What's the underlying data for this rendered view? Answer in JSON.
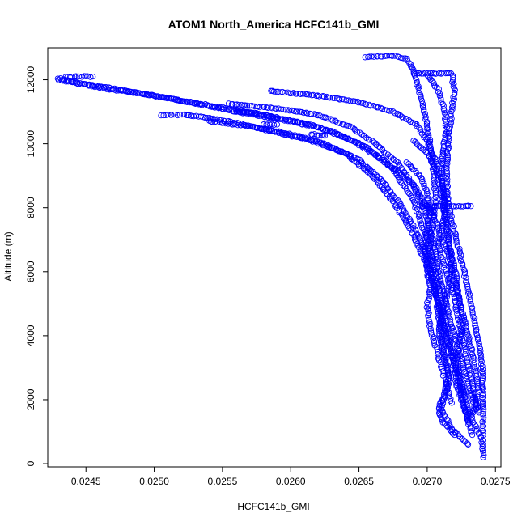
{
  "chart_data": {
    "type": "scatter",
    "title": "ATOM1 North_America HCFC141b_GMI",
    "xlabel": "HCFC141b_GMI",
    "ylabel": "Altitude (m)",
    "xlim": [
      0.02422,
      0.02754
    ],
    "ylim": [
      -100,
      13000
    ],
    "xticks": [
      0.0245,
      0.025,
      0.0255,
      0.026,
      0.0265,
      0.027,
      0.0275
    ],
    "xtick_labels": [
      "0.0245",
      "0.0250",
      "0.0255",
      "0.0260",
      "0.0265",
      "0.0270",
      "0.0275"
    ],
    "yticks": [
      0,
      2000,
      4000,
      6000,
      8000,
      10000,
      12000
    ],
    "ytick_labels": [
      "0",
      "2000",
      "4000",
      "6000",
      "8000",
      "10000",
      "12000"
    ],
    "grid": false,
    "legend": "none",
    "marker": "open-circle",
    "color": "#0000ff",
    "series": [
      {
        "profiles": [
          [
            [
              0.0243,
              12050
            ],
            [
              0.02445,
              11900
            ],
            [
              0.0248,
              11650
            ],
            [
              0.0252,
              11350
            ],
            [
              0.0256,
              11000
            ],
            [
              0.026,
              10700
            ],
            [
              0.0263,
              10400
            ],
            [
              0.02655,
              9900
            ],
            [
              0.02675,
              9200
            ],
            [
              0.0269,
              8200
            ],
            [
              0.027,
              7000
            ],
            [
              0.02705,
              5800
            ],
            [
              0.02708,
              4700
            ],
            [
              0.02712,
              3600
            ],
            [
              0.02716,
              2600
            ],
            [
              0.0271,
              1700
            ],
            [
              0.02718,
              1100
            ],
            [
              0.0273,
              600
            ]
          ],
          [
            [
              0.0243,
              12000
            ],
            [
              0.0246,
              11750
            ],
            [
              0.025,
              11500
            ],
            [
              0.0254,
              11200
            ],
            [
              0.0258,
              10900
            ],
            [
              0.02615,
              10600
            ],
            [
              0.02645,
              10100
            ],
            [
              0.02668,
              9500
            ],
            [
              0.0269,
              8700
            ],
            [
              0.02705,
              7700
            ],
            [
              0.02715,
              6600
            ],
            [
              0.02722,
              5400
            ],
            [
              0.02728,
              4300
            ],
            [
              0.02734,
              3300
            ],
            [
              0.02738,
              2300
            ],
            [
              0.02732,
              1400
            ],
            [
              0.0274,
              800
            ],
            [
              0.02741,
              200
            ]
          ],
          [
            [
              0.02525,
              10900
            ],
            [
              0.02555,
              10700
            ],
            [
              0.02585,
              10400
            ],
            [
              0.02615,
              10100
            ],
            [
              0.0264,
              9700
            ],
            [
              0.0266,
              9000
            ],
            [
              0.02675,
              8200
            ],
            [
              0.02688,
              7300
            ],
            [
              0.02698,
              6400
            ],
            [
              0.02705,
              5500
            ],
            [
              0.02712,
              4400
            ],
            [
              0.02718,
              3400
            ],
            [
              0.02722,
              2400
            ],
            [
              0.02728,
              1600
            ],
            [
              0.02733,
              900
            ]
          ],
          [
            [
              0.0254,
              10700
            ],
            [
              0.0257,
              10550
            ],
            [
              0.026,
              10300
            ],
            [
              0.02625,
              10000
            ],
            [
              0.0265,
              9500
            ],
            [
              0.02668,
              8800
            ],
            [
              0.02682,
              8000
            ],
            [
              0.02694,
              7100
            ],
            [
              0.02702,
              6100
            ],
            [
              0.02708,
              5000
            ],
            [
              0.02714,
              3900
            ],
            [
              0.02722,
              2900
            ],
            [
              0.02728,
              2100
            ]
          ],
          [
            [
              0.02585,
              11650
            ],
            [
              0.0262,
              11500
            ],
            [
              0.0265,
              11300
            ],
            [
              0.02675,
              11000
            ],
            [
              0.02692,
              10600
            ],
            [
              0.027,
              10100
            ],
            [
              0.02706,
              9500
            ],
            [
              0.0271,
              8900
            ],
            [
              0.02713,
              8300
            ],
            [
              0.02712,
              7600
            ],
            [
              0.02708,
              6900
            ],
            [
              0.02712,
              6200
            ],
            [
              0.02718,
              5500
            ],
            [
              0.02722,
              4700
            ],
            [
              0.02726,
              3900
            ],
            [
              0.0273,
              3100
            ],
            [
              0.02734,
              2300
            ],
            [
              0.02738,
              1600
            ]
          ],
          [
            [
              0.02555,
              11250
            ],
            [
              0.0259,
              11100
            ],
            [
              0.0262,
              10900
            ],
            [
              0.02645,
              10500
            ],
            [
              0.02662,
              10000
            ],
            [
              0.02678,
              9400
            ],
            [
              0.0269,
              8700
            ],
            [
              0.02698,
              7900
            ],
            [
              0.02704,
              7000
            ],
            [
              0.02708,
              6100
            ],
            [
              0.02713,
              5200
            ],
            [
              0.02718,
              4300
            ],
            [
              0.02724,
              3400
            ],
            [
              0.0273,
              2500
            ],
            [
              0.02736,
              1700
            ]
          ],
          [
            [
              0.02655,
              12700
            ],
            [
              0.02675,
              12750
            ],
            [
              0.02685,
              12650
            ],
            [
              0.0269,
              12300
            ],
            [
              0.02693,
              11800
            ],
            [
              0.02697,
              11200
            ],
            [
              0.027,
              10500
            ],
            [
              0.02703,
              9800
            ],
            [
              0.02705,
              9000
            ],
            [
              0.02706,
              8200
            ],
            [
              0.02704,
              7500
            ],
            [
              0.02702,
              6800
            ],
            [
              0.02706,
              6000
            ],
            [
              0.0271,
              5200
            ],
            [
              0.02714,
              4400
            ],
            [
              0.02718,
              3600
            ],
            [
              0.02722,
              2800
            ],
            [
              0.02726,
              2000
            ],
            [
              0.0273,
              1300
            ]
          ],
          [
            [
              0.0269,
              12200
            ],
            [
              0.02705,
              12200
            ],
            [
              0.02718,
              12200
            ],
            [
              0.0272,
              11600
            ],
            [
              0.02718,
              11000
            ],
            [
              0.02716,
              10400
            ],
            [
              0.02715,
              9700
            ],
            [
              0.02714,
              9000
            ],
            [
              0.02715,
              8300
            ],
            [
              0.02718,
              7600
            ],
            [
              0.02722,
              6900
            ],
            [
              0.02726,
              6200
            ],
            [
              0.0273,
              5400
            ],
            [
              0.02734,
              4600
            ],
            [
              0.02738,
              3800
            ],
            [
              0.0274,
              3000
            ],
            [
              0.02741,
              2200
            ],
            [
              0.02741,
              1500
            ],
            [
              0.02741,
              900
            ]
          ],
          [
            [
              0.027,
              12150
            ],
            [
              0.02708,
              11700
            ],
            [
              0.02712,
              11100
            ],
            [
              0.02714,
              10500
            ],
            [
              0.02712,
              9800
            ],
            [
              0.0271,
              9100
            ],
            [
              0.02712,
              8400
            ],
            [
              0.02714,
              7700
            ],
            [
              0.02716,
              7000
            ],
            [
              0.02718,
              6300
            ],
            [
              0.02716,
              5600
            ],
            [
              0.02712,
              4900
            ],
            [
              0.02708,
              4200
            ],
            [
              0.02712,
              3500
            ],
            [
              0.02716,
              2800
            ],
            [
              0.02712,
              2100
            ],
            [
              0.02708,
              1700
            ],
            [
              0.02712,
              1300
            ],
            [
              0.0272,
              900
            ]
          ],
          [
            [
              0.02685,
              9400
            ],
            [
              0.02695,
              9000
            ],
            [
              0.027,
              8500
            ],
            [
              0.02702,
              7900
            ],
            [
              0.027,
              7300
            ],
            [
              0.02698,
              6700
            ],
            [
              0.027,
              6100
            ],
            [
              0.02702,
              5500
            ],
            [
              0.027,
              4900
            ],
            [
              0.02702,
              4300
            ],
            [
              0.02706,
              3700
            ],
            [
              0.0271,
              3100
            ],
            [
              0.02714,
              2500
            ],
            [
              0.02718,
              1900
            ]
          ],
          [
            [
              0.0269,
              10100
            ],
            [
              0.027,
              9700
            ],
            [
              0.02706,
              9200
            ],
            [
              0.0271,
              8600
            ],
            [
              0.02712,
              8000
            ],
            [
              0.02714,
              7400
            ],
            [
              0.02716,
              6800
            ],
            [
              0.0272,
              6200
            ],
            [
              0.02722,
              5600
            ],
            [
              0.02724,
              5000
            ],
            [
              0.02726,
              4400
            ],
            [
              0.02724,
              3800
            ],
            [
              0.02722,
              3200
            ],
            [
              0.02724,
              2600
            ],
            [
              0.02728,
              2000
            ],
            [
              0.02732,
              1500
            ]
          ],
          [
            [
              0.02695,
              8050
            ],
            [
              0.02705,
              8050
            ],
            [
              0.02715,
              8050
            ],
            [
              0.02725,
              8050
            ],
            [
              0.02732,
              8050
            ]
          ],
          [
            [
              0.02505,
              10900
            ],
            [
              0.02515,
              10900
            ],
            [
              0.02525,
              10900
            ]
          ],
          [
            [
              0.02435,
              12080
            ],
            [
              0.02445,
              12100
            ],
            [
              0.02455,
              12100
            ]
          ],
          [
            [
              0.0258,
              10600
            ],
            [
              0.0259,
              10600
            ]
          ],
          [
            [
              0.0256,
              11000
            ],
            [
              0.02575,
              10950
            ],
            [
              0.0259,
              10800
            ]
          ],
          [
            [
              0.02615,
              10300
            ],
            [
              0.02625,
              10250
            ]
          ]
        ]
      }
    ]
  }
}
